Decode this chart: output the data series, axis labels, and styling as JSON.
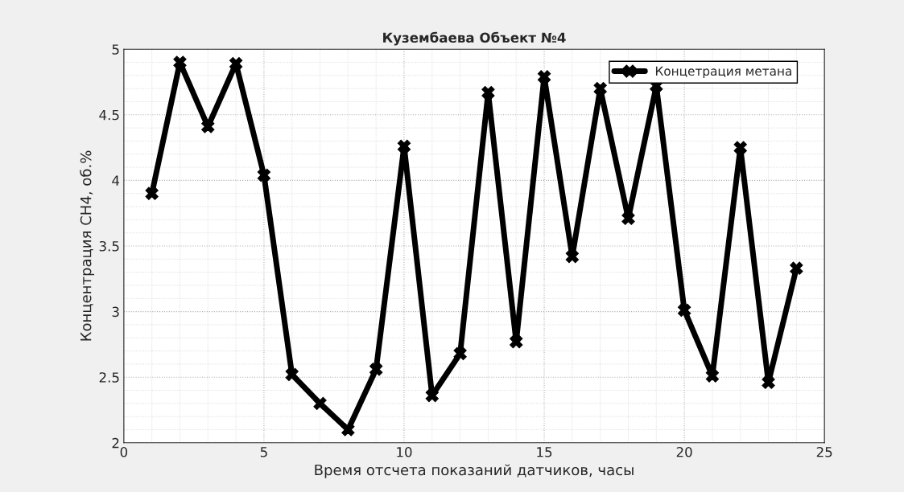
{
  "chart_data": {
    "type": "line",
    "title": "Кузембаева Объект №4",
    "xlabel": "Время отсчета показаний датчиков, часы",
    "ylabel": "Концентрация СН4, об.%",
    "x": [
      1,
      2,
      3,
      4,
      5,
      6,
      7,
      8,
      9,
      10,
      11,
      12,
      13,
      14,
      15,
      16,
      17,
      18,
      19,
      20,
      21,
      22,
      23,
      24
    ],
    "series": [
      {
        "name": "Концетрация метана",
        "color": "#000000",
        "values": [
          3.9,
          4.9,
          4.41,
          4.89,
          4.04,
          2.52,
          2.3,
          2.1,
          2.56,
          4.26,
          2.36,
          2.68,
          4.67,
          2.77,
          4.79,
          3.42,
          4.7,
          3.71,
          4.72,
          3.01,
          2.51,
          4.25,
          2.46,
          3.33
        ]
      }
    ],
    "xlim": [
      0,
      25
    ],
    "xticks": [
      0,
      5,
      10,
      15,
      20,
      25
    ],
    "ylim": [
      2,
      5
    ],
    "yticks": [
      2,
      2.5,
      3,
      3.5,
      4,
      4.5,
      5
    ],
    "grid": true,
    "legend": "top right",
    "marker": "cross",
    "line_style": "solid"
  }
}
